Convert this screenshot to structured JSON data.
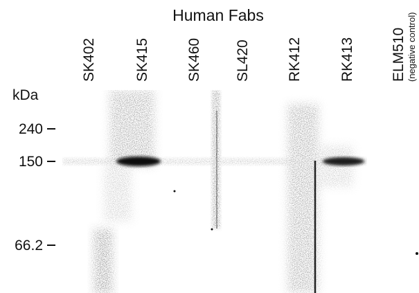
{
  "title": "Human Fabs",
  "unit_label": "kDa",
  "lanes": [
    "SK402",
    "SK415",
    "SK460",
    "SL420",
    "RK412",
    "RK413",
    "ELM510"
  ],
  "lane_note": "(negative control)",
  "markers": [
    "240",
    "150",
    "66.2"
  ]
}
